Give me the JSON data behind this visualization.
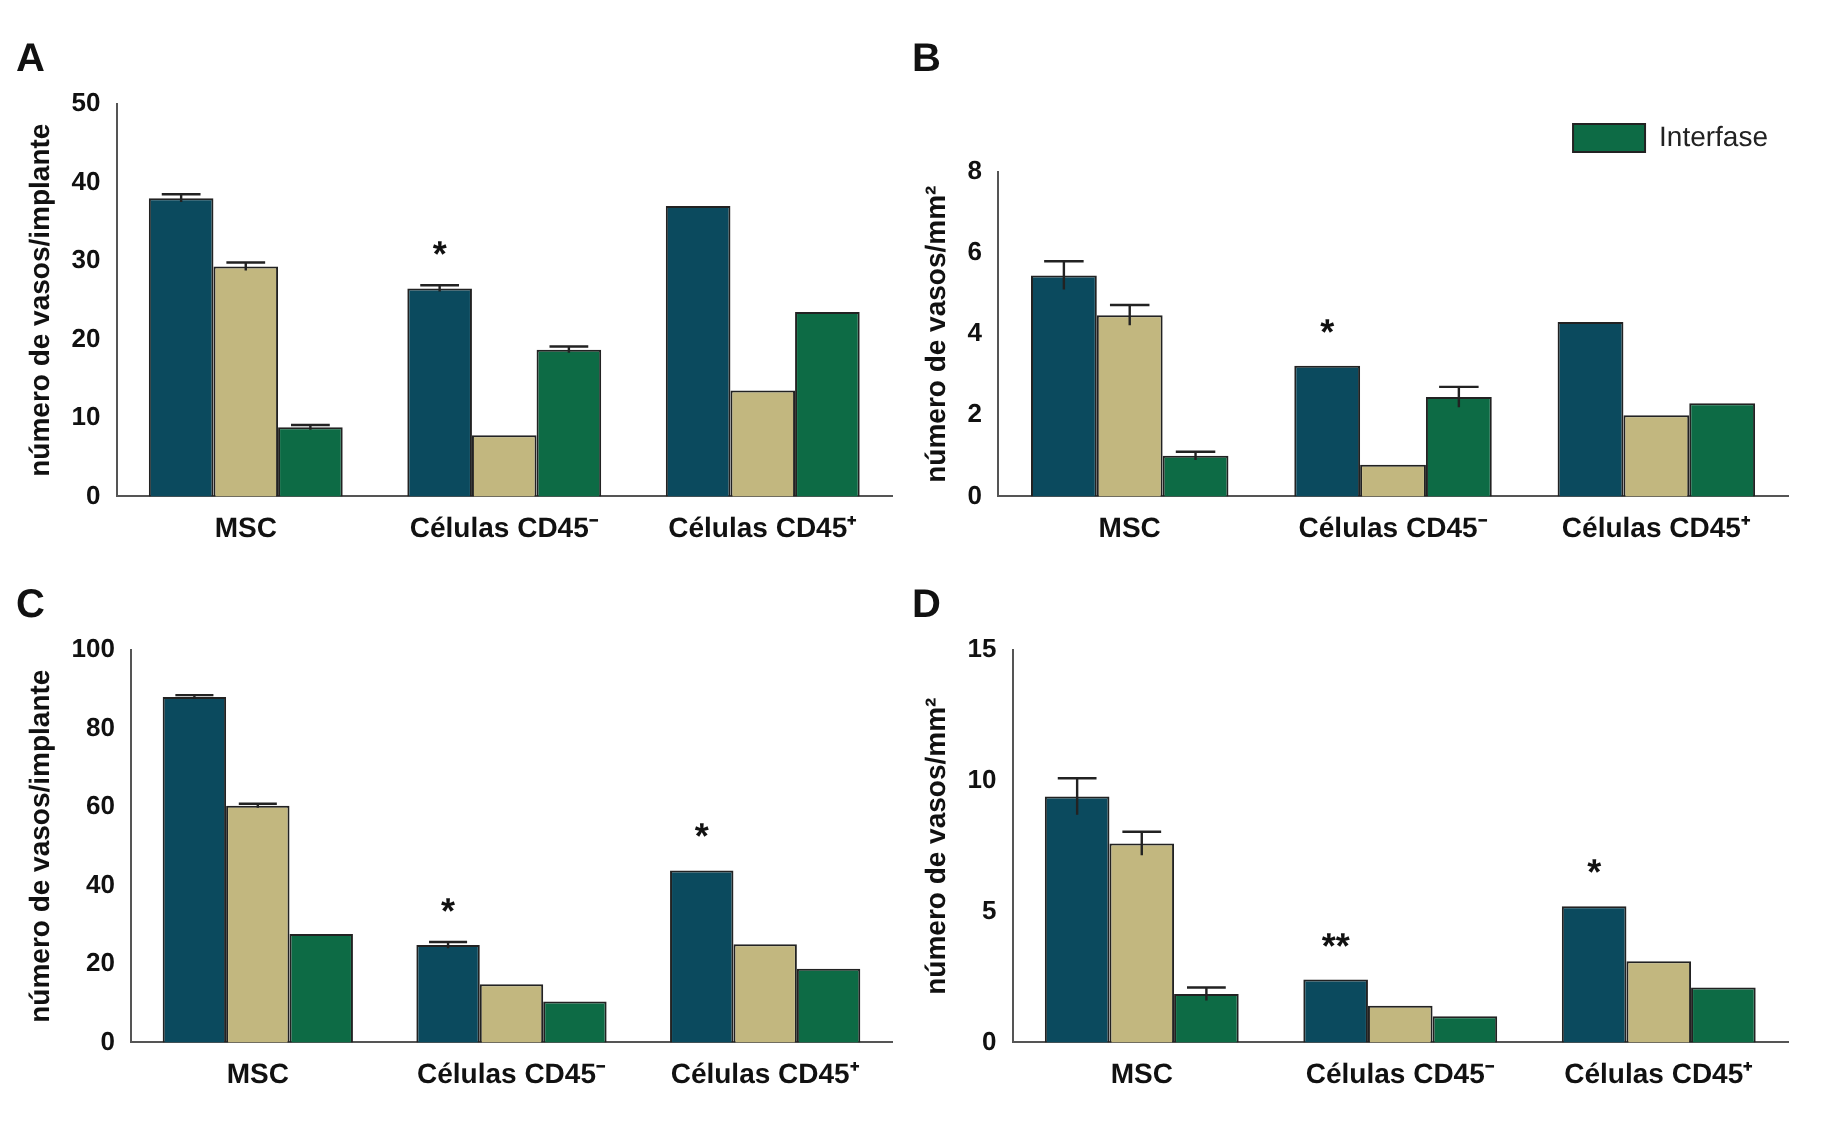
{
  "chart_data": [
    {
      "type": "bar",
      "title": "A",
      "ylabel": "número de vasos/implante",
      "categories": [
        "MSC",
        "Células CD45⁻",
        "Células CD45⁺"
      ],
      "series": [
        {
          "color": "#0b4a5e",
          "values": [
            38,
            26.5,
            37
          ],
          "errors": [
            0.5,
            0.4,
            null
          ]
        },
        {
          "color": "#c2b77f",
          "values": [
            29.3,
            7.8,
            13.5
          ],
          "errors": [
            0.5,
            null,
            null
          ]
        },
        {
          "color": "#0d6b45",
          "values": [
            8.8,
            18.7,
            23.5
          ],
          "errors": [
            0.3,
            0.4,
            null
          ]
        }
      ],
      "ylim": [
        0,
        50
      ],
      "yticks": [
        0,
        10,
        20,
        30,
        40,
        50
      ],
      "grid": false,
      "legend": false,
      "annotations": [
        "*"
      ]
    },
    {
      "type": "bar",
      "title": "B",
      "ylabel": "número de vasos/mm²",
      "categories": [
        "MSC",
        "Células CD45⁻",
        "Células CD45⁺"
      ],
      "series": [
        {
          "color": "#0b4a5e",
          "values": [
            5.45,
            3.22,
            4.3
          ],
          "errors": [
            0.35,
            null,
            null
          ]
        },
        {
          "color": "#c2b77f",
          "values": [
            4.47,
            0.78,
            2.0
          ],
          "errors": [
            0.25,
            null,
            null
          ]
        },
        {
          "name": "Interfase",
          "color": "#0d6b45",
          "values": [
            1.0,
            2.45,
            2.3
          ],
          "errors": [
            0.1,
            0.25,
            null
          ]
        }
      ],
      "ylim": [
        0,
        8
      ],
      "yticks": [
        0,
        2,
        4,
        6,
        8
      ],
      "grid": false,
      "legend": "top right",
      "annotations": [
        "*"
      ]
    },
    {
      "type": "bar",
      "title": "C",
      "ylabel": "número de vasos/implante",
      "categories": [
        "MSC",
        "Células CD45⁻",
        "Células CD45⁺"
      ],
      "series": [
        {
          "color": "#0b4a5e",
          "values": [
            88,
            24.8,
            43.8
          ],
          "errors": [
            0.5,
            0.8,
            null
          ]
        },
        {
          "color": "#c2b77f",
          "values": [
            60.3,
            14.8,
            25
          ],
          "errors": [
            0.5,
            null,
            null
          ]
        },
        {
          "color": "#0d6b45",
          "values": [
            27.6,
            10.4,
            18.8
          ],
          "errors": [
            null,
            null,
            null
          ]
        }
      ],
      "ylim": [
        0,
        100
      ],
      "yticks": [
        0,
        20,
        40,
        60,
        80,
        100
      ],
      "grid": false,
      "legend": false,
      "annotations": [
        "*",
        "*"
      ]
    },
    {
      "type": "bar",
      "title": "D",
      "ylabel": "número de vasos/mm²",
      "categories": [
        "MSC",
        "Células CD45⁻",
        "Células CD45⁺"
      ],
      "series": [
        {
          "color": "#0b4a5e",
          "values": [
            9.4,
            2.4,
            5.2
          ],
          "errors": [
            0.7,
            null,
            null
          ]
        },
        {
          "color": "#c2b77f",
          "values": [
            7.6,
            1.4,
            3.1
          ],
          "errors": [
            0.45,
            null,
            null
          ]
        },
        {
          "color": "#0d6b45",
          "values": [
            1.85,
            1.0,
            2.1
          ],
          "errors": [
            0.25,
            null,
            null
          ]
        }
      ],
      "ylim": [
        0,
        15
      ],
      "yticks": [
        0,
        5,
        10,
        15
      ],
      "grid": false,
      "legend": false,
      "annotations": [
        "**",
        "*"
      ]
    }
  ]
}
